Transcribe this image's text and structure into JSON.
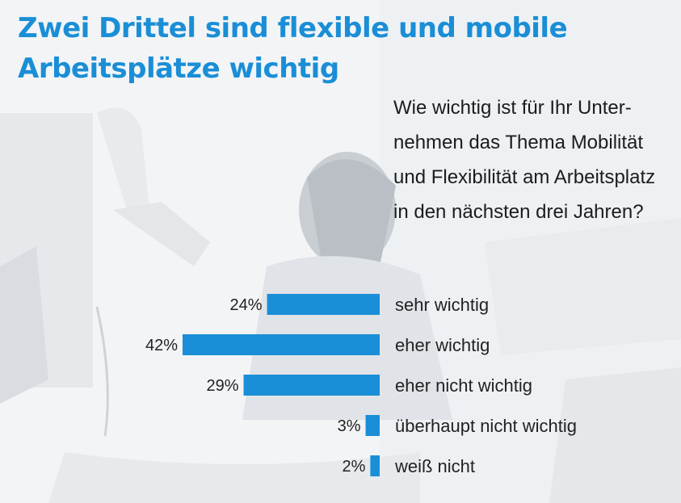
{
  "title": [
    "Zwei Drittel sind flexible und mobile",
    "Arbeitsplätze wichtig"
  ],
  "question": [
    "Wie wichtig ist für Ihr Unter-",
    "nehmen das Thema Mobilität",
    "und Flexibilität am Arbeitsplatz",
    "in den nächsten drei Jahren?"
  ],
  "colors": {
    "bar": "#1a8ed6",
    "title": "#1a8ed6",
    "text": "#222222"
  },
  "chart_data": {
    "type": "bar",
    "orientation": "horizontal",
    "unit": "%",
    "categories": [
      "sehr wichtig",
      "eher wichtig",
      "eher nicht wichtig",
      "überhaupt nicht wichtig",
      "weiß nicht"
    ],
    "values": [
      24,
      42,
      29,
      3,
      2
    ],
    "value_labels": [
      "24%",
      "42%",
      "29%",
      "3%",
      "2%"
    ],
    "xlim": [
      0,
      42
    ]
  }
}
